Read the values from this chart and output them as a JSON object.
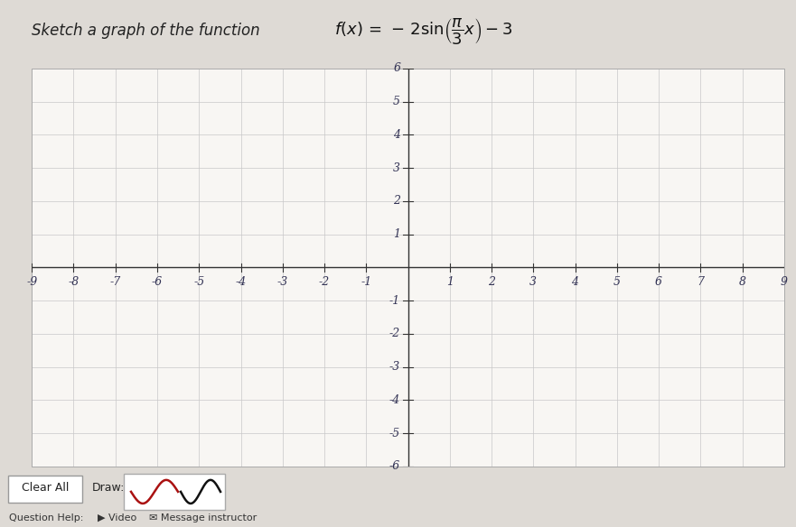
{
  "title_text": "Sketch a graph of the function",
  "xlim": [
    -9,
    9
  ],
  "ylim": [
    -6,
    6
  ],
  "xticks": [
    -9,
    -8,
    -7,
    -6,
    -5,
    -4,
    -3,
    -2,
    -1,
    1,
    2,
    3,
    4,
    5,
    6,
    7,
    8,
    9
  ],
  "yticks": [
    -6,
    -5,
    -4,
    -3,
    -2,
    -1,
    1,
    2,
    3,
    4,
    5,
    6
  ],
  "grid_color": "#c8c8c8",
  "axis_color": "#333333",
  "tick_color": "#333355",
  "bg_color": "#f2f0ed",
  "paper_color": "#f8f6f3",
  "outer_bg": "#dedad5",
  "title_fontsize": 12,
  "tick_fontsize": 9,
  "bottom_bg": "#f0ede8"
}
